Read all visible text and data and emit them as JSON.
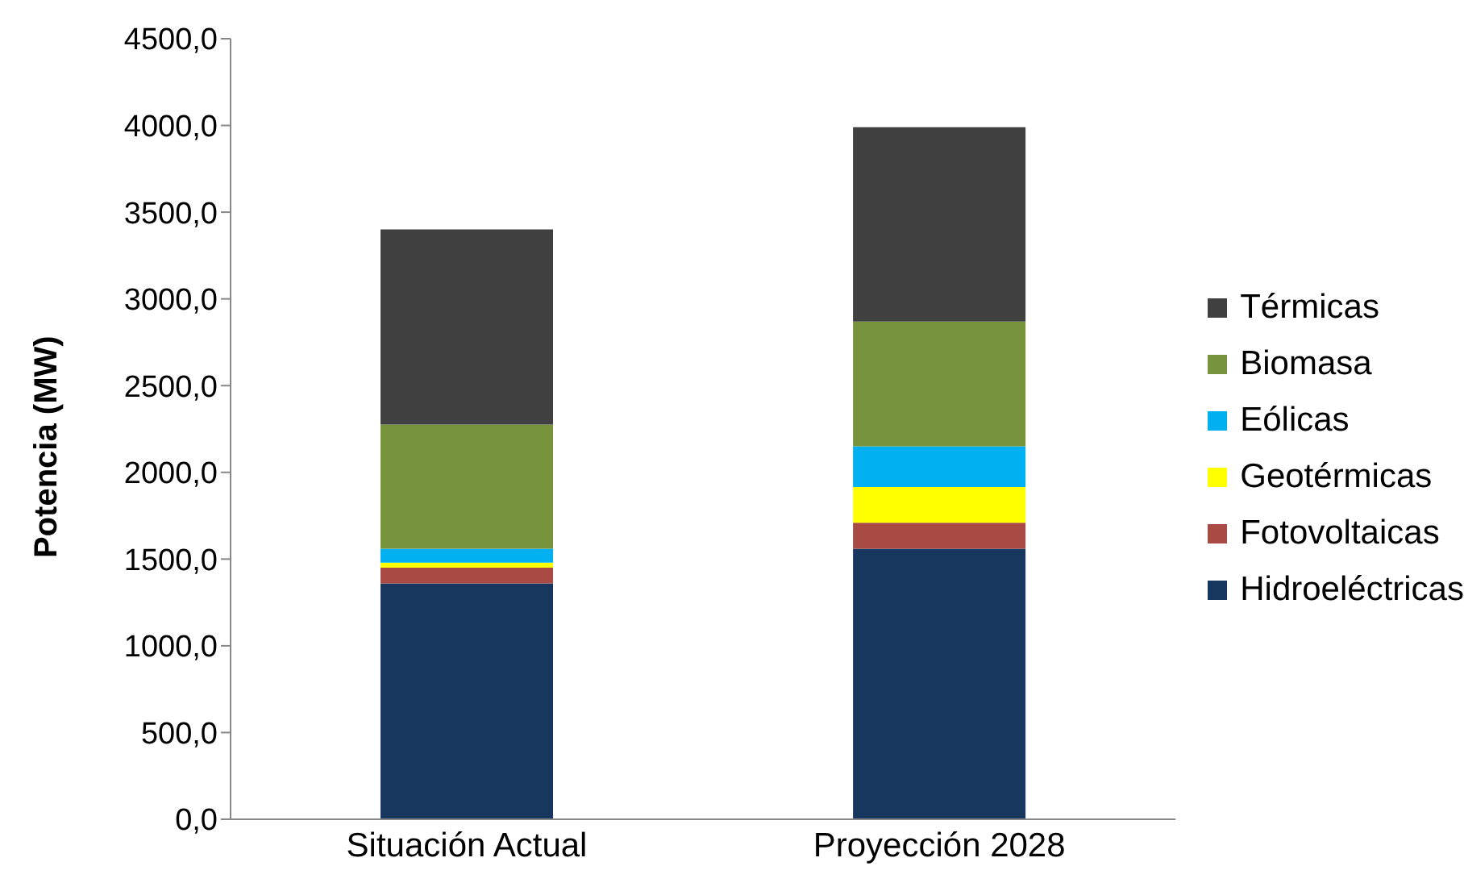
{
  "chart_data": {
    "type": "bar",
    "stacked": true,
    "ylabel": "Potencia (MW)",
    "categories": [
      "Situación Actual",
      "Proyección 2028"
    ],
    "series": [
      {
        "name": "Hidroeléctricas",
        "color": "#17375e",
        "values": [
          1360,
          1560
        ]
      },
      {
        "name": "Fotovoltaicas",
        "color": "#a94a45",
        "values": [
          90,
          150
        ]
      },
      {
        "name": "Geotérmicas",
        "color": "#ffff00",
        "values": [
          30,
          205
        ]
      },
      {
        "name": "Eólicas",
        "color": "#00b0f0",
        "values": [
          80,
          235
        ]
      },
      {
        "name": "Biomasa",
        "color": "#77933c",
        "values": [
          715,
          720
        ]
      },
      {
        "name": "Térmicas",
        "color": "#404040",
        "values": [
          1125,
          1120
        ]
      }
    ],
    "ylim": [
      0,
      4500
    ],
    "yticks": [
      {
        "value": 0,
        "label": "0,0"
      },
      {
        "value": 500,
        "label": "500,0"
      },
      {
        "value": 1000,
        "label": "1000,0"
      },
      {
        "value": 1500,
        "label": "1500,0"
      },
      {
        "value": 2000,
        "label": "2000,0"
      },
      {
        "value": 2500,
        "label": "2500,0"
      },
      {
        "value": 3000,
        "label": "3000,0"
      },
      {
        "value": 3500,
        "label": "3500,0"
      },
      {
        "value": 4000,
        "label": "4000,0"
      },
      {
        "value": 4500,
        "label": "4500,0"
      }
    ],
    "grid": false,
    "legend": "right"
  }
}
